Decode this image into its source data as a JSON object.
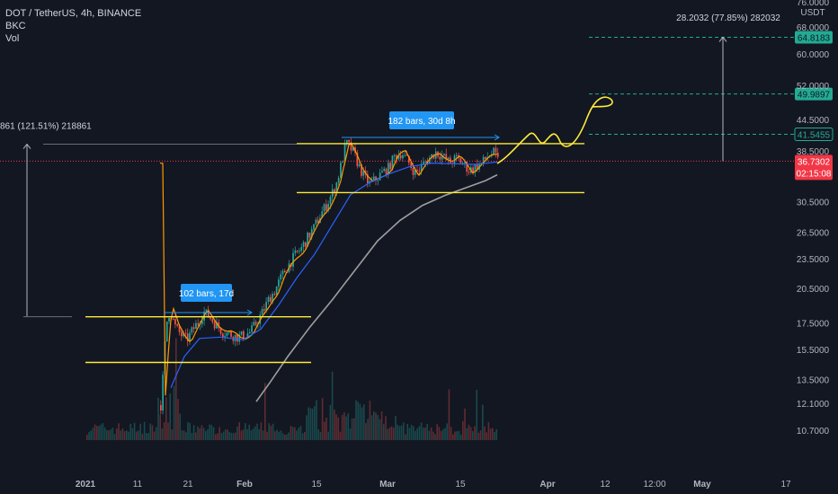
{
  "legend": {
    "symbol_line": "DOT / TetherUS, 4h, BINANCE",
    "indicators": [
      "BKC",
      "Vol"
    ]
  },
  "price_axis": {
    "currency": "USDT",
    "ticks": [
      "76.0000",
      "68.0000",
      "60.0000",
      "52.0000",
      "44.5000",
      "38.5000",
      "30.5000",
      "26.5000",
      "23.5000",
      "20.5000",
      "17.5000",
      "15.5000",
      "13.5000",
      "12.1000",
      "10.7000"
    ],
    "ticks_partial_top": "76.0000"
  },
  "time_axis": {
    "ticks": [
      "2021",
      "11",
      "21",
      "Feb",
      "15",
      "Mar",
      "15",
      "Apr",
      "12",
      "12:00",
      "May",
      "17"
    ]
  },
  "price_labels": [
    {
      "value": "64.8183",
      "color": "#22ab94",
      "text_color": "#131722"
    },
    {
      "value": "49.9897",
      "color": "#22ab94",
      "text_color": "#131722"
    },
    {
      "value": "41.5455",
      "color": "#131722",
      "text_color": "#22ab94",
      "border": "#22ab94"
    },
    {
      "value": "36.7302",
      "color": "#f23645",
      "text_color": "#ffffff",
      "countdown": "02:15:08"
    }
  ],
  "annotations": {
    "left_measure": "861 (121.51%) 218861",
    "right_measure": "28.2032 (77.85%) 282032",
    "range_box_1": "102 bars, 17d",
    "range_box_2": "182 bars, 30d 8h"
  },
  "chart_data": {
    "type": "candlestick",
    "symbol": "DOT / TetherUS",
    "interval": "4h",
    "exchange": "BINANCE",
    "price_scale": "log",
    "y_ticks": [
      68.0,
      60.0,
      52.0,
      44.5,
      38.5,
      30.5,
      26.5,
      23.5,
      20.5,
      17.5,
      15.5,
      13.5,
      12.1,
      10.7
    ],
    "x_ticks": [
      "2021",
      "11",
      "21",
      "Feb",
      "15",
      "Mar",
      "15",
      "Apr",
      "12",
      "12:00",
      "May",
      "17"
    ],
    "last_price": 36.7302,
    "bar_countdown": "02:15:08",
    "horizontal_levels": [
      {
        "price": 18.0,
        "color": "#ffeb3b",
        "style": "solid"
      },
      {
        "price": 14.6,
        "color": "#ffeb3b",
        "style": "solid"
      },
      {
        "price": 39.8,
        "color": "#ffeb3b",
        "style": "solid"
      },
      {
        "price": 31.8,
        "color": "#ffeb3b",
        "style": "solid"
      },
      {
        "price": 64.8183,
        "color": "#22ab94",
        "style": "dashed"
      },
      {
        "price": 49.9897,
        "color": "#22ab94",
        "style": "dashed"
      },
      {
        "price": 41.5455,
        "color": "#22ab94",
        "style": "dashed"
      },
      {
        "price": 36.7302,
        "color": "#f23645",
        "style": "dotted"
      }
    ],
    "series": [
      {
        "name": "price",
        "color_up": "#26a69a",
        "color_down": "#ef5350"
      },
      {
        "name": "moving-average-fast",
        "color": "#ff9800"
      },
      {
        "name": "moving-average-mid",
        "color": "#2962ff"
      },
      {
        "name": "moving-average-slow",
        "color": "#9e9e9e"
      }
    ],
    "colors": {
      "background": "#131722",
      "levels": "#ffeb3b",
      "target": "#22ab94",
      "last_price": "#f23645",
      "range_box": "#2196f3"
    }
  }
}
